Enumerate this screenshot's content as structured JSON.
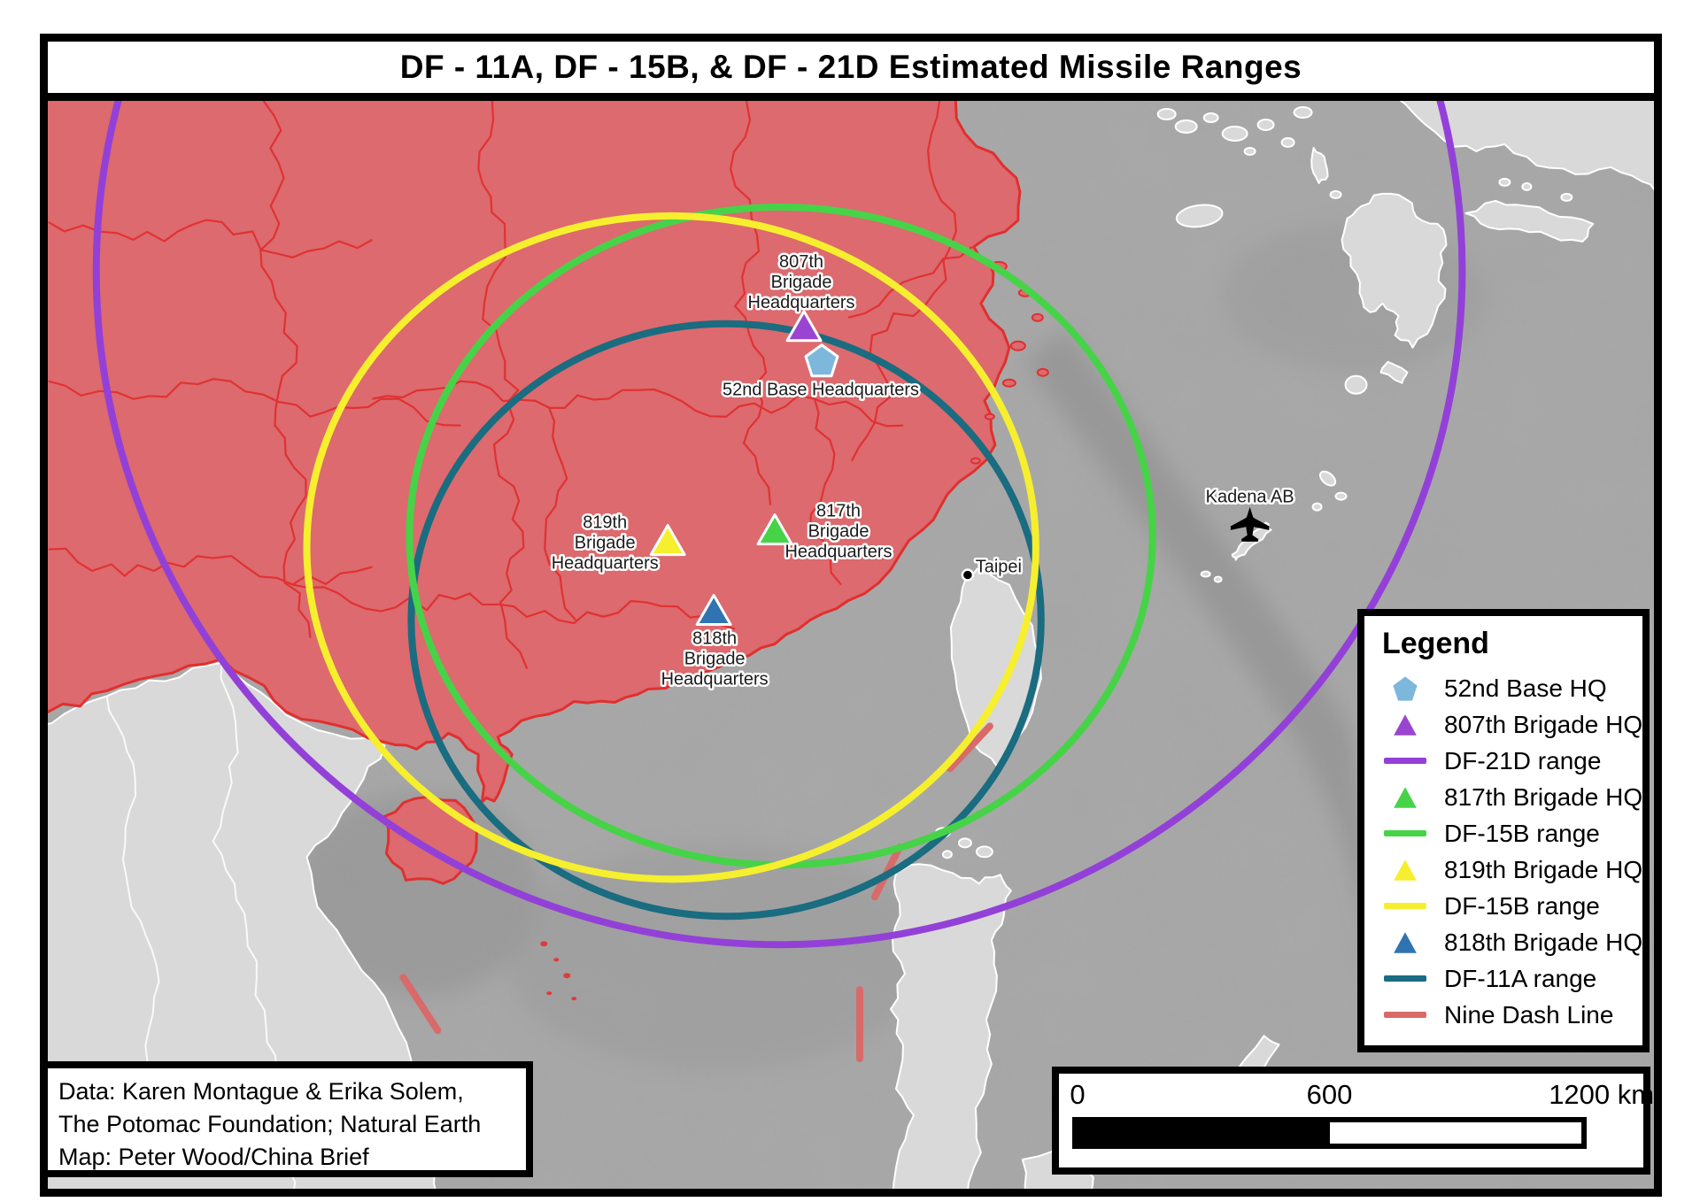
{
  "title": "DF - 11A, DF - 15B, & DF - 21D Estimated Missile Ranges",
  "legend": {
    "title": "Legend",
    "items": [
      {
        "label": "52nd Base HQ",
        "symbol": "pentagon",
        "color": "#7db7dc"
      },
      {
        "label": "807th Brigade HQ",
        "symbol": "triangle",
        "color": "#9a45d2"
      },
      {
        "label": "DF-21D range",
        "symbol": "line",
        "color": "#9340d8"
      },
      {
        "label": "817th Brigade HQ",
        "symbol": "triangle",
        "color": "#46d348"
      },
      {
        "label": "DF-15B range",
        "symbol": "line",
        "color": "#46d348"
      },
      {
        "label": "819th Brigade HQ",
        "symbol": "triangle",
        "color": "#f6ef2e"
      },
      {
        "label": "DF-15B range",
        "symbol": "line",
        "color": "#f6ef2e"
      },
      {
        "label": "818th Brigade HQ",
        "symbol": "triangle",
        "color": "#2f74b0"
      },
      {
        "label": "DF-11A range",
        "symbol": "line",
        "color": "#1a6c80"
      },
      {
        "label": "Nine Dash Line",
        "symbol": "line",
        "color": "#d86a6a"
      }
    ]
  },
  "map_labels": {
    "hq_807": {
      "lines": [
        "807th",
        "Brigade",
        "Headquarters"
      ]
    },
    "base_52": {
      "text": "52nd Base Headquarters"
    },
    "hq_819": {
      "lines": [
        "819th",
        "Brigade",
        "Headquarters"
      ]
    },
    "hq_817": {
      "lines": [
        "817th",
        "Brigade",
        "Headquarters"
      ]
    },
    "hq_818": {
      "lines": [
        "818th",
        "Brigade",
        "Headquarters"
      ]
    },
    "taipei": {
      "text": "Taipei"
    },
    "kadena": {
      "text": "Kadena AB"
    }
  },
  "scale_bar": {
    "tick_0": "0",
    "tick_600": "600",
    "tick_1200": "1200 km"
  },
  "attribution": [
    "Data: Karen Montague & Erika Solem,",
    "The Potomac Foundation; Natural Earth",
    "Map: Peter Wood/China Brief"
  ]
}
